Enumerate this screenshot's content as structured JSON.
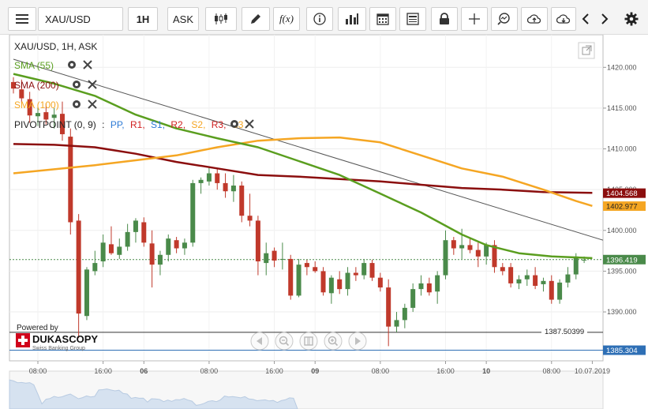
{
  "toolbar": {
    "menu_icon": "hamburger-menu-icon",
    "symbol": "XAU/USD",
    "timeframe": "1H",
    "side": "ASK",
    "icons": [
      "candlestick-type-icon",
      "pencil-draw-icon",
      "function-fx-icon",
      "info-icon",
      "volume-bars-icon",
      "calendar-icon",
      "news-icon",
      "lock-icon",
      "crosshair-icon",
      "zoom-icon",
      "cloud-upload-icon",
      "cloud-download-icon",
      "chevron-left-icon",
      "chevron-right-icon",
      "gear-icon"
    ],
    "fx_label": "f(x)"
  },
  "legend": {
    "instrument": "XAU/USD, 1H, ASK",
    "sma55": "SMA (55)",
    "sma200": "SMA (200)",
    "sma100": "SMA (100)",
    "pivot_name": "PIVOTPOINT (0, 9)",
    "pivot_sep": ":",
    "pivot_items": [
      {
        "label": "PP,",
        "color": "#2e7bd6"
      },
      {
        "label": "R1,",
        "color": "#d02020"
      },
      {
        "label": "S1,",
        "color": "#2e7bd6"
      },
      {
        "label": "R2,",
        "color": "#d02020"
      },
      {
        "label": "S2,",
        "color": "#f5a623"
      },
      {
        "label": "R3,",
        "color": "#d02020"
      },
      {
        "label": "S3",
        "color": "#f5a623"
      }
    ]
  },
  "price_labels": {
    "sma200_value": "1404.568",
    "sma100_value": "1402.977",
    "current_price": "1396.419",
    "low_line_value": "1387.50399",
    "pivot_value": "1385.304"
  },
  "branding": {
    "powered_by": "Powered by",
    "name": "DUKASCOPY",
    "tagline": "Swiss Banking Group"
  },
  "colors": {
    "up": "#4a8a4a",
    "down": "#c0392b",
    "sma55": "#5a9e1f",
    "sma100": "#f5a623",
    "sma200": "#8b0e0e",
    "label_bg_sma200": "#8b0e0e",
    "label_bg_sma100": "#f5a623",
    "label_bg_price": "#4a8a4a",
    "label_bg_pivot": "#2e6fb5"
  },
  "chart_data": {
    "type": "candlestick",
    "instrument": "XAU/USD",
    "timeframe": "1H",
    "ylim": [
      1384,
      1424
    ],
    "y_ticks": [
      "1420.000",
      "1415.000",
      "1410.000",
      "1405.000",
      "1400.000",
      "1395.000",
      "1390.000"
    ],
    "x_ticks": [
      {
        "i": 3,
        "label": "08:00",
        "bold": false
      },
      {
        "i": 11,
        "label": "16:00",
        "bold": false
      },
      {
        "i": 16,
        "label": "06",
        "bold": true
      },
      {
        "i": 24,
        "label": "08:00",
        "bold": false
      },
      {
        "i": 32,
        "label": "16:00",
        "bold": false
      },
      {
        "i": 37,
        "label": "09",
        "bold": true
      },
      {
        "i": 45,
        "label": "08:00",
        "bold": false
      },
      {
        "i": 53,
        "label": "16:00",
        "bold": false
      },
      {
        "i": 58,
        "label": "10",
        "bold": true
      },
      {
        "i": 66,
        "label": "08:00",
        "bold": false
      },
      {
        "i": 71,
        "label": "10.07.2019",
        "bold": false
      }
    ],
    "candles": [
      [
        1418.2,
        1418.8,
        1416.8,
        1417.4
      ],
      [
        1417.3,
        1418.5,
        1415.6,
        1416.2
      ],
      [
        1416.1,
        1417.0,
        1413.2,
        1414.1
      ],
      [
        1414.0,
        1415.2,
        1412.8,
        1414.4
      ],
      [
        1414.5,
        1415.6,
        1413.0,
        1413.6
      ],
      [
        1413.8,
        1415.0,
        1412.5,
        1414.2
      ],
      [
        1414.3,
        1415.8,
        1411.0,
        1411.8
      ],
      [
        1411.5,
        1412.5,
        1399.5,
        1401.0
      ],
      [
        1401.2,
        1402.0,
        1386.8,
        1389.8
      ],
      [
        1389.5,
        1395.5,
        1389.0,
        1395.2
      ],
      [
        1395.0,
        1397.5,
        1394.5,
        1396.0
      ],
      [
        1396.2,
        1399.5,
        1395.5,
        1398.5
      ],
      [
        1398.3,
        1400.5,
        1397.0,
        1397.2
      ],
      [
        1397.0,
        1399.0,
        1396.5,
        1398.0
      ],
      [
        1398.0,
        1400.8,
        1397.5,
        1399.8
      ],
      [
        1399.8,
        1401.5,
        1398.5,
        1401.2
      ],
      [
        1401.0,
        1401.6,
        1398.0,
        1398.5
      ],
      [
        1398.4,
        1400.0,
        1393.0,
        1395.8
      ],
      [
        1395.8,
        1397.5,
        1394.5,
        1397.0
      ],
      [
        1397.0,
        1399.5,
        1396.2,
        1399.0
      ],
      [
        1398.8,
        1399.2,
        1397.2,
        1397.8
      ],
      [
        1397.8,
        1399.0,
        1397.0,
        1398.5
      ],
      [
        1398.5,
        1406.2,
        1398.0,
        1405.8
      ],
      [
        1405.8,
        1406.5,
        1404.5,
        1406.2
      ],
      [
        1406.0,
        1407.8,
        1405.5,
        1407.0
      ],
      [
        1407.0,
        1407.5,
        1405.0,
        1405.8
      ],
      [
        1405.8,
        1407.0,
        1404.0,
        1404.8
      ],
      [
        1404.8,
        1406.8,
        1403.5,
        1405.5
      ],
      [
        1405.5,
        1406.0,
        1401.0,
        1401.8
      ],
      [
        1401.8,
        1404.5,
        1400.5,
        1401.2
      ],
      [
        1401.2,
        1401.8,
        1394.5,
        1396.2
      ],
      [
        1396.0,
        1398.5,
        1394.5,
        1397.2
      ],
      [
        1397.5,
        1397.9,
        1395.5,
        1396.3
      ],
      [
        1396.5,
        1398.5,
        1395.2,
        1396.5
      ],
      [
        1396.5,
        1397.0,
        1391.5,
        1392.0
      ],
      [
        1392.0,
        1396.5,
        1391.8,
        1395.8
      ],
      [
        1396.0,
        1396.4,
        1394.5,
        1395.5
      ],
      [
        1395.5,
        1396.2,
        1394.8,
        1395.0
      ],
      [
        1395.0,
        1395.5,
        1392.0,
        1392.4
      ],
      [
        1392.3,
        1394.5,
        1391.0,
        1394.2
      ],
      [
        1394.0,
        1395.0,
        1392.2,
        1392.8
      ],
      [
        1392.8,
        1395.5,
        1392.0,
        1394.8
      ],
      [
        1394.8,
        1395.5,
        1393.8,
        1394.5
      ],
      [
        1394.5,
        1396.5,
        1394.0,
        1396.0
      ],
      [
        1396.0,
        1396.4,
        1393.8,
        1394.2
      ],
      [
        1394.2,
        1394.8,
        1392.5,
        1393.0
      ],
      [
        1393.0,
        1394.0,
        1385.8,
        1388.2
      ],
      [
        1388.2,
        1390.0,
        1387.5,
        1389.0
      ],
      [
        1389.0,
        1391.0,
        1388.0,
        1390.5
      ],
      [
        1390.5,
        1393.5,
        1390.0,
        1392.8
      ],
      [
        1392.8,
        1394.5,
        1392.0,
        1393.5
      ],
      [
        1393.5,
        1394.2,
        1392.0,
        1392.4
      ],
      [
        1392.5,
        1395.0,
        1391.0,
        1394.5
      ],
      [
        1394.5,
        1400.0,
        1394.0,
        1398.8
      ],
      [
        1398.8,
        1399.2,
        1397.0,
        1397.8
      ],
      [
        1397.8,
        1400.2,
        1396.5,
        1398.2
      ],
      [
        1398.2,
        1399.0,
        1397.2,
        1397.6
      ],
      [
        1397.6,
        1398.5,
        1395.5,
        1396.8
      ],
      [
        1396.8,
        1398.5,
        1395.8,
        1398.2
      ],
      [
        1398.2,
        1398.8,
        1394.8,
        1395.5
      ],
      [
        1395.5,
        1396.0,
        1394.5,
        1395.0
      ],
      [
        1395.5,
        1396.0,
        1393.0,
        1393.5
      ],
      [
        1393.5,
        1394.5,
        1392.8,
        1394.0
      ],
      [
        1394.0,
        1395.2,
        1393.2,
        1394.5
      ],
      [
        1394.5,
        1395.5,
        1392.8,
        1393.2
      ],
      [
        1393.4,
        1394.2,
        1392.5,
        1393.8
      ],
      [
        1393.8,
        1394.5,
        1391.0,
        1391.5
      ],
      [
        1391.5,
        1394.0,
        1391.0,
        1393.6
      ],
      [
        1393.6,
        1395.5,
        1393.0,
        1394.6
      ],
      [
        1394.6,
        1397.2,
        1394.0,
        1396.8
      ],
      [
        1396.4,
        1396.8,
        1396.0,
        1396.4
      ]
    ],
    "sma55": [
      [
        0,
        1419.2
      ],
      [
        5,
        1418.0
      ],
      [
        10,
        1416.5
      ],
      [
        15,
        1414.2
      ],
      [
        20,
        1412.5
      ],
      [
        25,
        1411.3
      ],
      [
        30,
        1410.2
      ],
      [
        35,
        1408.5
      ],
      [
        40,
        1406.8
      ],
      [
        45,
        1404.5
      ],
      [
        50,
        1402.2
      ],
      [
        55,
        1399.5
      ],
      [
        58,
        1398.2
      ],
      [
        62,
        1397.2
      ],
      [
        66,
        1396.8
      ],
      [
        71,
        1396.6
      ]
    ],
    "sma100": [
      [
        0,
        1407.0
      ],
      [
        5,
        1407.5
      ],
      [
        10,
        1408.0
      ],
      [
        15,
        1408.6
      ],
      [
        20,
        1409.2
      ],
      [
        25,
        1410.2
      ],
      [
        30,
        1411.0
      ],
      [
        35,
        1411.3
      ],
      [
        40,
        1411.4
      ],
      [
        45,
        1410.8
      ],
      [
        50,
        1409.2
      ],
      [
        55,
        1407.6
      ],
      [
        60,
        1406.6
      ],
      [
        65,
        1405.0
      ],
      [
        69,
        1403.6
      ],
      [
        71,
        1403.0
      ]
    ],
    "sma200": [
      [
        0,
        1410.6
      ],
      [
        5,
        1410.5
      ],
      [
        10,
        1410.2
      ],
      [
        15,
        1409.4
      ],
      [
        20,
        1408.4
      ],
      [
        25,
        1407.6
      ],
      [
        30,
        1406.8
      ],
      [
        35,
        1406.6
      ],
      [
        40,
        1406.3
      ],
      [
        45,
        1406.0
      ],
      [
        50,
        1405.6
      ],
      [
        55,
        1405.2
      ],
      [
        60,
        1405.0
      ],
      [
        65,
        1404.7
      ],
      [
        71,
        1404.6
      ]
    ],
    "trendline": [
      [
        0,
        1421.0
      ],
      [
        71,
        1398.8
      ]
    ],
    "low_line": 1387.50399,
    "pivot_line": 1385.304,
    "current_line": 1396.419
  }
}
